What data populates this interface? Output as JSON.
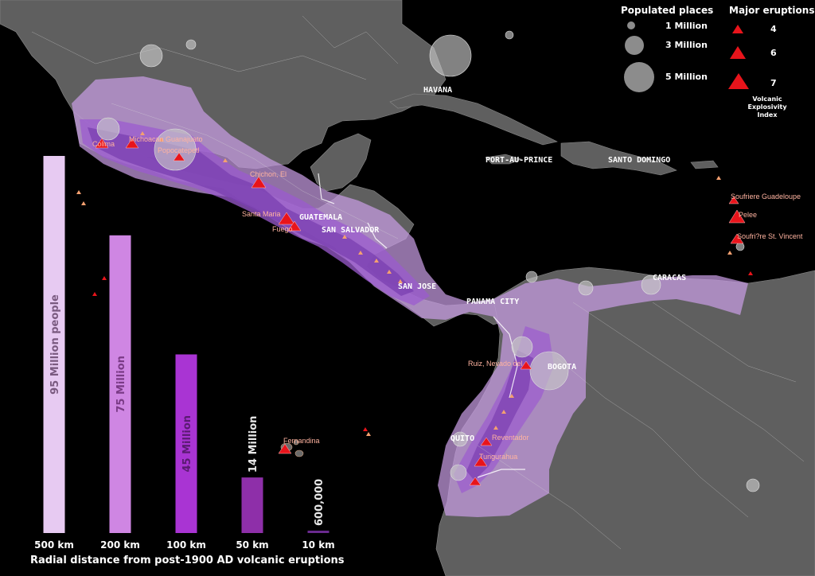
{
  "legend": {
    "populated_title": "Populated places",
    "populated_items": [
      {
        "label": "1 Million"
      },
      {
        "label": "3 Million"
      },
      {
        "label": "5 Million"
      }
    ],
    "eruptions_title": "Major eruptions",
    "eruption_items": [
      {
        "label": "4"
      },
      {
        "label": "6"
      },
      {
        "label": "7"
      }
    ],
    "vei_note": [
      "Volcanic",
      "Explosivity",
      "Index"
    ]
  },
  "cities": [
    {
      "name": "HAVANA"
    },
    {
      "name": "PORT-AU-PRINCE"
    },
    {
      "name": "SANTO DOMINGO"
    },
    {
      "name": "GUATEMALA"
    },
    {
      "name": "SAN SALVADOR"
    },
    {
      "name": "SAN JOSE"
    },
    {
      "name": "PANAMA CITY"
    },
    {
      "name": "CARACAS"
    },
    {
      "name": "BOGOTA"
    },
    {
      "name": "QUITO"
    }
  ],
  "volcanoes": [
    {
      "name": "Colima"
    },
    {
      "name": "Michoacan Guanajuato"
    },
    {
      "name": "Popocatepetl"
    },
    {
      "name": "Chichon, El"
    },
    {
      "name": "Santa Maria"
    },
    {
      "name": "Fuego"
    },
    {
      "name": "Soufriere Guadeloupe"
    },
    {
      "name": "Pelee"
    },
    {
      "name": "Soufri?re St. Vincent"
    },
    {
      "name": "Ruiz, Nevado del"
    },
    {
      "name": "Fernandina"
    },
    {
      "name": "Reventador"
    },
    {
      "name": "Tungurahua"
    }
  ],
  "colors": {
    "land": "#5f5f5f",
    "ocean": "#000000",
    "zone_light": "#d6b4ee",
    "zone_mid": "#a874d8",
    "zone_dark": "#7a3fb0",
    "volcano": "#e8141b",
    "volcano_label": "#ffb3a0",
    "city_bubble": "#c8c8c8"
  },
  "chart_data": {
    "type": "bar",
    "xlabel": "Radial distance from post-1900 AD volcanic eruptions",
    "categories": [
      "500 km",
      "200 km",
      "100 km",
      "50 km",
      "10 km"
    ],
    "values": [
      95000000,
      75000000,
      45000000,
      14000000,
      600000
    ],
    "value_labels": [
      "95 Million people",
      "75 Million",
      "45 Million",
      "14 Million",
      "600,000"
    ],
    "bar_colors": [
      "#e7caf2",
      "#cf86e3",
      "#a934d3",
      "#8e2fa9",
      "#6a2a8f"
    ],
    "label_colors": [
      "#7a5a80",
      "#7a3a86",
      "#5a1a72",
      "#e8e8e8",
      "#e8e8e8"
    ],
    "ylim": [
      0,
      95000000
    ]
  }
}
